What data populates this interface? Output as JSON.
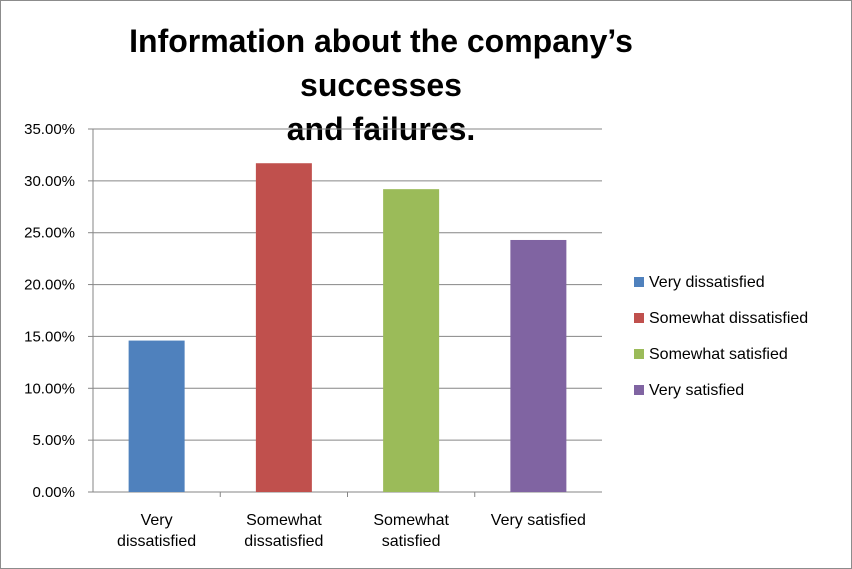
{
  "chart_data": {
    "type": "bar",
    "title": "Information about the company’s successes and failures.",
    "title_lines": [
      "Information about the company’s successes",
      "and failures."
    ],
    "categories": [
      "Very dissatisfied",
      "Somewhat dissatisfied",
      "Somewhat satisfied",
      "Very satisfied"
    ],
    "category_label_lines": [
      [
        "Very",
        "dissatisfied"
      ],
      [
        "Somewhat",
        "dissatisfied"
      ],
      [
        "Somewhat",
        "satisfied"
      ],
      [
        "Very satisfied"
      ]
    ],
    "values": [
      0.146,
      0.317,
      0.292,
      0.243
    ],
    "colors": [
      "#4F81BD",
      "#C0504D",
      "#9BBB59",
      "#8064A2"
    ],
    "ylim": [
      0,
      0.35
    ],
    "yticks": [
      0,
      0.05,
      0.1,
      0.15,
      0.2,
      0.25,
      0.3,
      0.35
    ],
    "ytick_labels": [
      "0.00%",
      "5.00%",
      "10.00%",
      "15.00%",
      "20.00%",
      "25.00%",
      "30.00%",
      "35.00%"
    ],
    "grid": true,
    "legend": {
      "position": "right",
      "entries": [
        "Very dissatisfied",
        "Somewhat dissatisfied",
        "Somewhat satisfied",
        "Very satisfied"
      ]
    },
    "xlabel": "",
    "ylabel": ""
  }
}
